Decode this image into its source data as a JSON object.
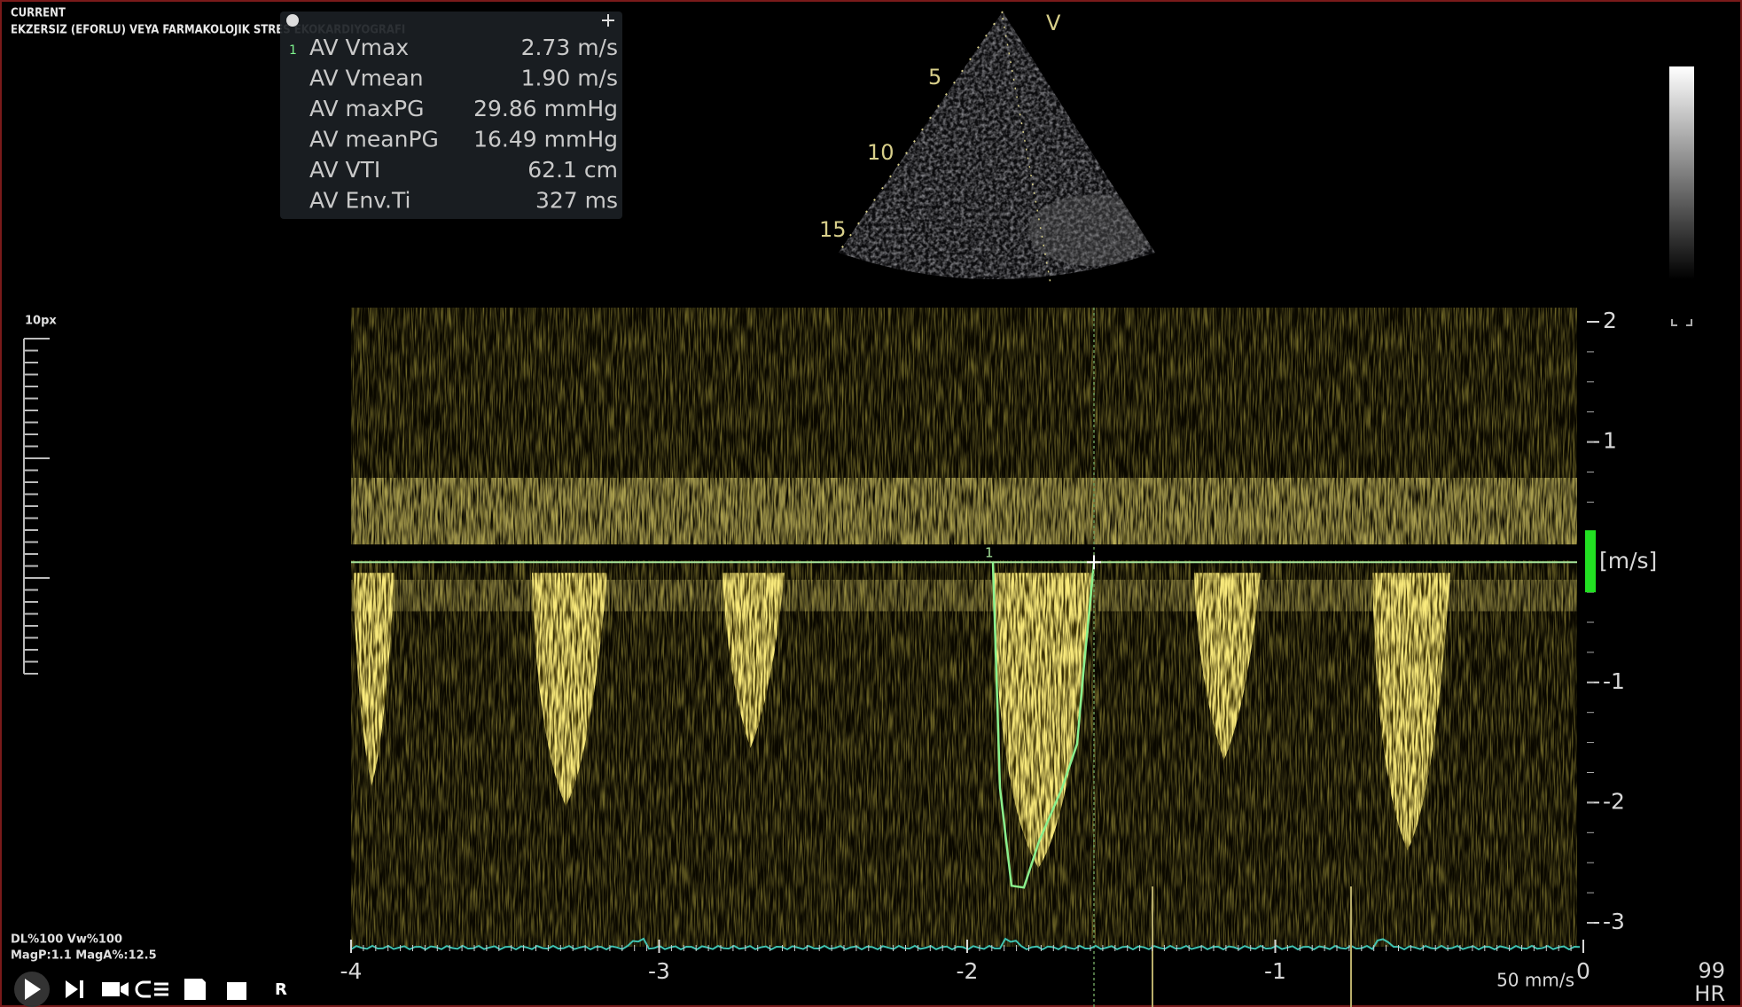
{
  "header": {
    "status": "CURRENT",
    "exam": "EKZERSIZ (EFORLU) VEYA FARMAKOLOJIK STRES EKOKARDIYOGRAFI"
  },
  "measurements": {
    "index": "1",
    "rows": [
      [
        "AV Vmax",
        "2.73 m/s"
      ],
      [
        "AV Vmean",
        "1.90 m/s"
      ],
      [
        "AV maxPG",
        "29.86 mmHg"
      ],
      [
        "AV meanPG",
        "16.49 mmHg"
      ],
      [
        "AV VTI",
        "62.1 cm"
      ],
      [
        "AV Env.Ti",
        "327 ms"
      ]
    ]
  },
  "sector": {
    "mode": "V",
    "depth_labels": [
      "5",
      "10",
      "15"
    ]
  },
  "scale_label": "10px",
  "doppler": {
    "yticks": [
      2,
      1,
      -1,
      -2,
      -3
    ],
    "ylim": [
      -3,
      2
    ],
    "unit": "[m/s]",
    "xticks": [
      -4,
      -3,
      -2,
      -1,
      0
    ],
    "xlim": [
      -4,
      0
    ],
    "sweep": "50 mm/s",
    "trace_label": "1"
  },
  "footer": {
    "line1": "DL%100 Vw%100",
    "line2": "MagP:1.1 MagA%:12.5",
    "review": "R"
  },
  "hr": {
    "value": "99",
    "label": "HR"
  }
}
